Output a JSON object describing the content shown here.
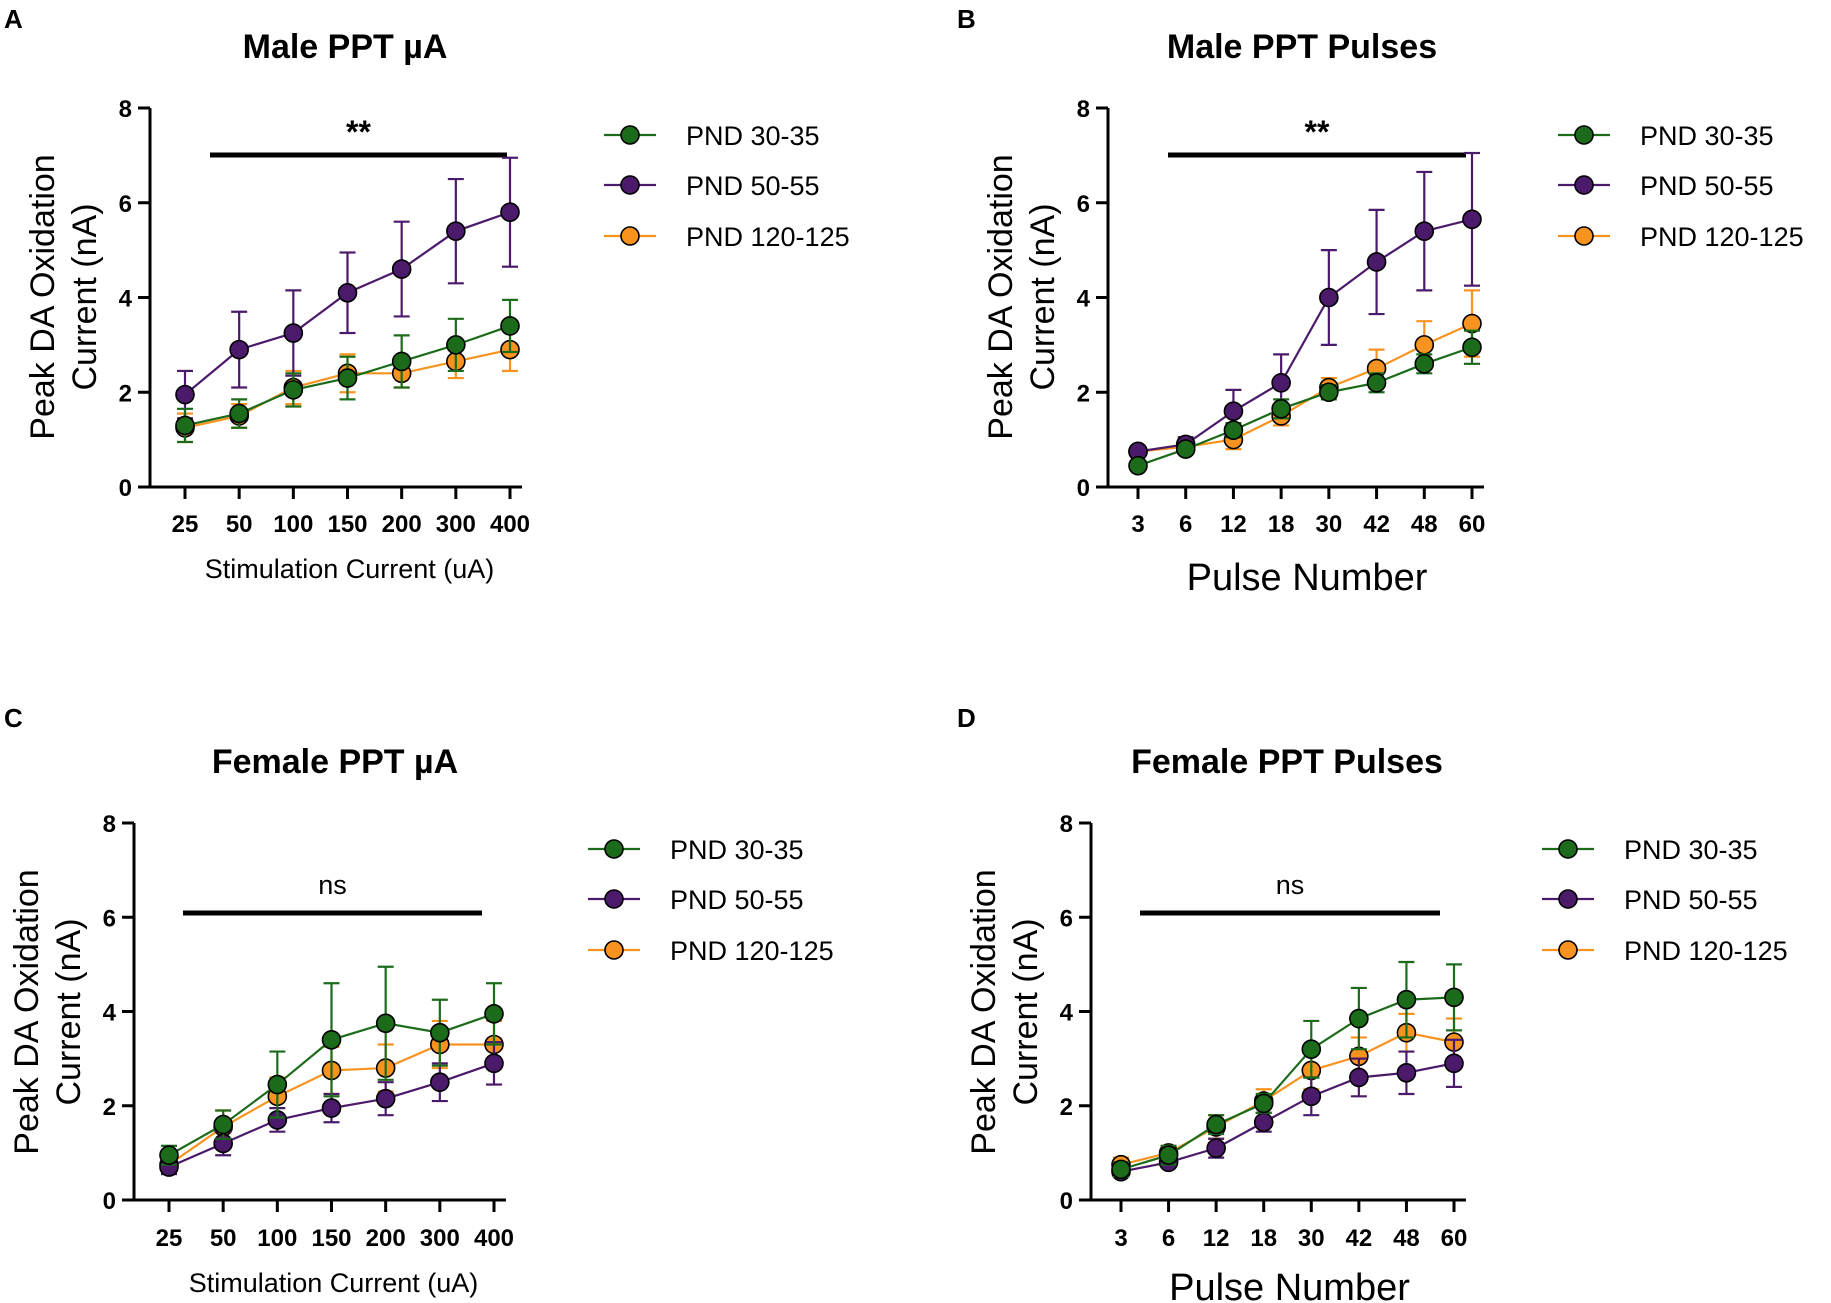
{
  "colors": {
    "PND 30-35": "#1b6b1b",
    "PND 50-55": "#4b1a6b",
    "PND 120-125": "#f7931e"
  },
  "chart_data": [
    {
      "panel": "A",
      "type": "line",
      "title": "Male PPT µA",
      "xlabel": "Stimulation Current (uA)",
      "ylabel": "Peak DA Oxidation Current (nA)",
      "ylabel_lines": [
        "Peak DA Oxidation",
        "Current (nA)"
      ],
      "categories": [
        "25",
        "50",
        "100",
        "150",
        "200",
        "300",
        "400"
      ],
      "ylim": [
        0,
        8
      ],
      "yticks": [
        "0",
        "2",
        "4",
        "6",
        "8"
      ],
      "significance": "**",
      "legend": [
        "PND 30-35",
        "PND 50-55",
        "PND 120-125"
      ],
      "series": [
        {
          "name": "PND 30-35",
          "values": [
            1.3,
            1.55,
            2.05,
            2.3,
            2.65,
            3.0,
            3.4
          ],
          "errors": [
            0.35,
            0.3,
            0.35,
            0.45,
            0.55,
            0.55,
            0.55
          ]
        },
        {
          "name": "PND 50-55",
          "values": [
            1.95,
            2.9,
            3.25,
            4.1,
            4.6,
            5.4,
            5.8
          ],
          "errors": [
            0.5,
            0.8,
            0.9,
            0.85,
            1.0,
            1.1,
            1.15
          ]
        },
        {
          "name": "PND 120-125",
          "values": [
            1.25,
            1.5,
            2.1,
            2.4,
            2.4,
            2.65,
            2.9
          ],
          "errors": [
            0.3,
            0.25,
            0.35,
            0.4,
            0.3,
            0.35,
            0.45
          ]
        }
      ]
    },
    {
      "panel": "B",
      "type": "line",
      "title": "Male PPT Pulses",
      "xlabel": "Pulse Number",
      "ylabel": "Peak DA Oxidation Current (nA)",
      "ylabel_lines": [
        "Peak DA Oxidation",
        "Current (nA)"
      ],
      "categories": [
        "3",
        "6",
        "12",
        "18",
        "30",
        "42",
        "48",
        "60"
      ],
      "ylim": [
        0,
        8
      ],
      "yticks": [
        "0",
        "2",
        "4",
        "6",
        "8"
      ],
      "significance": "**",
      "legend": [
        "PND 30-35",
        "PND 50-55",
        "PND 120-125"
      ],
      "series": [
        {
          "name": "PND 30-35",
          "values": [
            0.45,
            0.8,
            1.2,
            1.65,
            2.0,
            2.2,
            2.6,
            2.95
          ],
          "errors": [
            0.1,
            0.1,
            0.15,
            0.2,
            0.15,
            0.2,
            0.2,
            0.35
          ]
        },
        {
          "name": "PND 50-55",
          "values": [
            0.75,
            0.9,
            1.6,
            2.2,
            4.0,
            4.75,
            5.4,
            5.65
          ],
          "errors": [
            0.1,
            0.15,
            0.45,
            0.6,
            1.0,
            1.1,
            1.25,
            1.4
          ]
        },
        {
          "name": "PND 120-125",
          "values": [
            0.75,
            0.85,
            1.0,
            1.5,
            2.1,
            2.5,
            3.0,
            3.45
          ],
          "errors": [
            0.1,
            0.15,
            0.2,
            0.2,
            0.2,
            0.4,
            0.5,
            0.7
          ]
        }
      ]
    },
    {
      "panel": "C",
      "type": "line",
      "title": "Female PPT µA",
      "xlabel": "Stimulation Current (uA)",
      "ylabel": "Peak DA Oxidation Current (nA)",
      "ylabel_lines": [
        "Peak DA Oxidation",
        "Current (nA)"
      ],
      "categories": [
        "25",
        "50",
        "100",
        "150",
        "200",
        "300",
        "400"
      ],
      "ylim": [
        0,
        8
      ],
      "yticks": [
        "0",
        "2",
        "4",
        "6",
        "8"
      ],
      "significance": "ns",
      "legend": [
        "PND 30-35",
        "PND 50-55",
        "PND 120-125"
      ],
      "series": [
        {
          "name": "PND 30-35",
          "values": [
            0.95,
            1.6,
            2.45,
            3.4,
            3.75,
            3.55,
            3.95
          ],
          "errors": [
            0.2,
            0.3,
            0.7,
            1.2,
            1.2,
            0.7,
            0.65
          ]
        },
        {
          "name": "PND 50-55",
          "values": [
            0.7,
            1.2,
            1.7,
            1.95,
            2.15,
            2.5,
            2.9
          ],
          "errors": [
            0.15,
            0.25,
            0.25,
            0.3,
            0.35,
            0.4,
            0.45
          ]
        },
        {
          "name": "PND 120-125",
          "values": [
            0.75,
            1.55,
            2.2,
            2.75,
            2.8,
            3.3,
            3.3
          ],
          "errors": [
            0.15,
            0.35,
            0.4,
            0.5,
            0.5,
            0.5,
            0.5
          ]
        }
      ]
    },
    {
      "panel": "D",
      "type": "line",
      "title": "Female PPT Pulses",
      "xlabel": "Pulse Number",
      "ylabel": "Peak DA Oxidation Current (nA)",
      "ylabel_lines": [
        "Peak DA Oxidation",
        "Current (nA)"
      ],
      "categories": [
        "3",
        "6",
        "12",
        "18",
        "30",
        "42",
        "48",
        "60"
      ],
      "ylim": [
        0,
        8
      ],
      "yticks": [
        "0",
        "2",
        "4",
        "6",
        "8"
      ],
      "significance": "ns",
      "legend": [
        "PND 30-35",
        "PND 50-55",
        "PND 120-125"
      ],
      "series": [
        {
          "name": "PND 30-35",
          "values": [
            0.65,
            0.95,
            1.6,
            2.05,
            3.2,
            3.85,
            4.25,
            4.3
          ],
          "errors": [
            0.15,
            0.2,
            0.2,
            0.2,
            0.6,
            0.65,
            0.8,
            0.7
          ]
        },
        {
          "name": "PND 50-55",
          "values": [
            0.6,
            0.8,
            1.1,
            1.65,
            2.2,
            2.6,
            2.7,
            2.9
          ],
          "errors": [
            0.1,
            0.1,
            0.2,
            0.2,
            0.4,
            0.4,
            0.45,
            0.5
          ]
        },
        {
          "name": "PND 120-125",
          "values": [
            0.75,
            1.0,
            1.55,
            2.1,
            2.75,
            3.05,
            3.55,
            3.35
          ],
          "errors": [
            0.15,
            0.15,
            0.25,
            0.25,
            0.4,
            0.4,
            0.4,
            0.5
          ]
        }
      ]
    }
  ]
}
